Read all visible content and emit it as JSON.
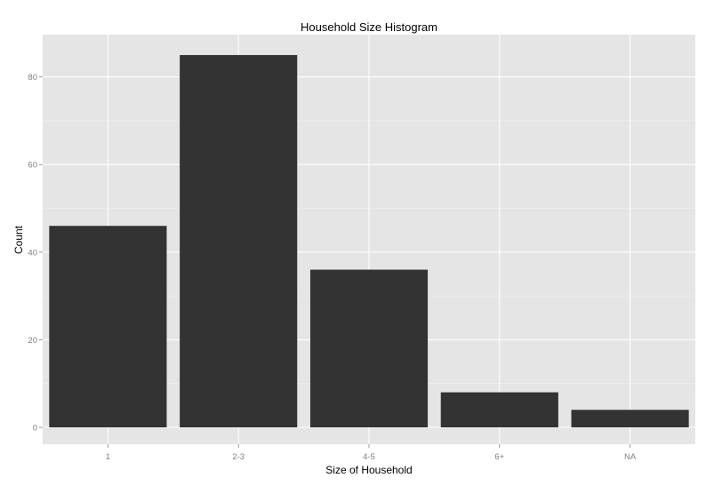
{
  "chart_data": {
    "type": "bar",
    "title": "Household Size Histogram",
    "xlabel": "Size of Household",
    "ylabel": "Count",
    "categories": [
      "1",
      "2-3",
      "4-5",
      "6+",
      "NA"
    ],
    "values": [
      46,
      85,
      36,
      8,
      4
    ],
    "ylim": [
      0,
      89.3
    ],
    "yticks": [
      0,
      20,
      40,
      60,
      80
    ],
    "grid": true,
    "colors": {
      "panel_background": "#e5e5e5",
      "grid_major": "#ffffff",
      "grid_minor": "#f2f2f2",
      "bar_fill": "#333333",
      "tick_text": "#7f7f7f"
    }
  }
}
